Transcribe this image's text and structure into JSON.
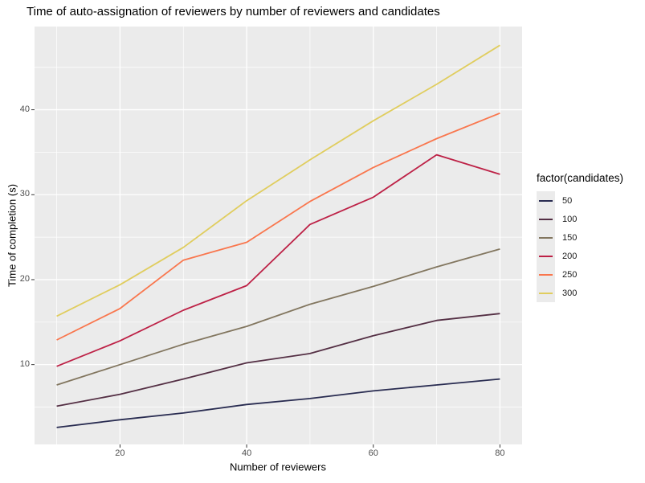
{
  "chart_data": {
    "type": "line",
    "title": "Time of auto-assignation of reviewers by number of reviewers and candidates",
    "xlabel": "Number of reviewers",
    "ylabel": "Time of completion (s)",
    "legend_title": "factor(candidates)",
    "legend_position": "right",
    "x": [
      10,
      20,
      30,
      40,
      50,
      60,
      70,
      80
    ],
    "series": [
      {
        "name": "50",
        "color": "#292c51",
        "values": [
          2.6,
          3.5,
          4.3,
          5.3,
          6.0,
          6.9,
          7.6,
          8.3
        ]
      },
      {
        "name": "100",
        "color": "#542f44",
        "values": [
          5.1,
          6.5,
          8.3,
          10.2,
          11.3,
          13.4,
          15.2,
          16.0
        ]
      },
      {
        "name": "150",
        "color": "#82765f",
        "values": [
          7.6,
          10.0,
          12.4,
          14.5,
          17.1,
          19.2,
          21.5,
          23.6
        ]
      },
      {
        "name": "200",
        "color": "#bd2146",
        "values": [
          9.8,
          12.8,
          16.4,
          19.3,
          26.5,
          29.7,
          34.7,
          32.4
        ]
      },
      {
        "name": "250",
        "color": "#f9764d",
        "values": [
          12.9,
          16.6,
          22.3,
          24.4,
          29.2,
          33.2,
          36.6,
          39.6
        ]
      },
      {
        "name": "300",
        "color": "#e0cd5e",
        "values": [
          15.7,
          19.4,
          23.8,
          29.3,
          34.1,
          38.7,
          43.0,
          47.6
        ]
      }
    ],
    "x_ticks": [
      20,
      40,
      60,
      80
    ],
    "y_ticks": [
      10,
      20,
      30,
      40
    ],
    "x_minor_grid": [
      10,
      30,
      50,
      70
    ],
    "y_minor_grid": [
      5,
      15,
      25,
      35,
      45
    ],
    "xlim": [
      6.5,
      83.5
    ],
    "ylim": [
      0.6,
      49.8
    ],
    "grid": true,
    "panel_background": "#ebebeb",
    "grid_color": "#ffffff",
    "tick_color": "#333333",
    "tick_label_color": "#4d4d4d"
  }
}
